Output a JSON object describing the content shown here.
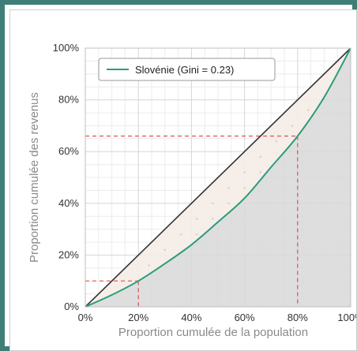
{
  "chart_data": {
    "type": "line",
    "title": "",
    "xlabel": "Proportion cumulée de la population",
    "ylabel": "Proportion cumulée des revenus",
    "xlim": [
      0,
      100
    ],
    "ylim": [
      0,
      100
    ],
    "x_ticks": [
      "0%",
      "20%",
      "40%",
      "60%",
      "80%",
      "100%"
    ],
    "y_ticks": [
      "0%",
      "20%",
      "40%",
      "60%",
      "80%",
      "100%"
    ],
    "grid": true,
    "legend_position": "top-left",
    "series": [
      {
        "name": "Slovénie (Gini  = 0.23)",
        "color": "#2a9d78",
        "x": [
          0,
          10,
          20,
          30,
          40,
          50,
          60,
          70,
          80,
          90,
          100
        ],
        "y": [
          0,
          4.6,
          10,
          16.7,
          24,
          32.8,
          42,
          54,
          66,
          81,
          100
        ]
      }
    ],
    "equality_line": {
      "x": [
        0,
        100
      ],
      "y": [
        0,
        100
      ],
      "color": "#333333"
    },
    "reference_lines": [
      {
        "x": 20,
        "y": 10,
        "color": "#e05050"
      },
      {
        "x": 80,
        "y": 66,
        "color": "#e05050"
      }
    ]
  }
}
